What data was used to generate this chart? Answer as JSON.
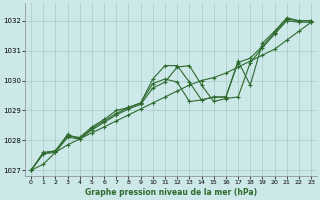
{
  "title": "Graphe pression niveau de la mer (hPa)",
  "bg_color": "#cce8e8",
  "grid_color": "#aacccc",
  "line_color": "#2d6a2d",
  "marker_color": "#2d6a2d",
  "xlim": [
    -0.5,
    23.5
  ],
  "ylim": [
    1026.8,
    1032.6
  ],
  "yticks": [
    1027,
    1028,
    1029,
    1030,
    1031,
    1032
  ],
  "xticks": [
    0,
    1,
    2,
    3,
    4,
    5,
    6,
    7,
    8,
    9,
    10,
    11,
    12,
    13,
    14,
    15,
    16,
    17,
    18,
    19,
    20,
    21,
    22,
    23
  ],
  "series": [
    {
      "x": [
        0,
        1,
        2,
        3,
        4,
        5,
        6,
        7,
        8,
        9,
        10,
        11,
        12,
        13,
        14,
        15,
        16,
        17,
        18,
        19,
        20,
        21,
        22,
        23
      ],
      "y": [
        1027.0,
        1027.55,
        1027.65,
        1028.15,
        1028.1,
        1028.45,
        1028.7,
        1029.0,
        1029.1,
        1029.25,
        1030.05,
        1030.5,
        1030.5,
        1029.95,
        1029.35,
        1029.45,
        1029.45,
        1030.65,
        1029.85,
        1031.25,
        1031.65,
        1032.1,
        1032.0,
        1032.0
      ]
    },
    {
      "x": [
        0,
        1,
        2,
        3,
        4,
        5,
        6,
        7,
        8,
        9,
        10,
        11,
        12,
        13,
        14,
        15,
        16,
        17,
        18,
        19,
        20,
        21,
        22,
        23
      ],
      "y": [
        1027.0,
        1027.6,
        1027.65,
        1028.2,
        1028.05,
        1028.4,
        1028.65,
        1028.9,
        1029.1,
        1029.25,
        1029.9,
        1030.05,
        1029.95,
        1029.3,
        1029.35,
        1029.45,
        1029.45,
        1030.6,
        1030.75,
        1031.15,
        1031.6,
        1032.05,
        1032.0,
        1032.0
      ]
    },
    {
      "x": [
        0,
        1,
        2,
        3,
        4,
        5,
        6,
        7,
        8,
        9,
        10,
        11,
        12,
        13,
        14,
        15,
        16,
        17,
        18,
        19,
        20,
        21,
        22,
        23
      ],
      "y": [
        1027.0,
        1027.55,
        1027.6,
        1028.1,
        1028.05,
        1028.35,
        1028.6,
        1028.85,
        1029.05,
        1029.2,
        1029.75,
        1029.95,
        1030.45,
        1030.5,
        1029.85,
        1029.3,
        1029.4,
        1029.45,
        1030.6,
        1031.1,
        1031.55,
        1032.0,
        1031.95,
        1031.95
      ]
    },
    {
      "x": [
        0,
        1,
        2,
        3,
        4,
        5,
        6,
        7,
        8,
        9,
        10,
        11,
        12,
        13,
        14,
        15,
        16,
        17,
        18,
        19,
        20,
        21,
        22,
        23
      ],
      "y": [
        1027.0,
        1027.2,
        1027.6,
        1027.85,
        1028.05,
        1028.25,
        1028.45,
        1028.65,
        1028.85,
        1029.05,
        1029.25,
        1029.45,
        1029.65,
        1029.85,
        1030.0,
        1030.1,
        1030.25,
        1030.45,
        1030.65,
        1030.85,
        1031.05,
        1031.35,
        1031.65,
        1031.95
      ]
    }
  ]
}
